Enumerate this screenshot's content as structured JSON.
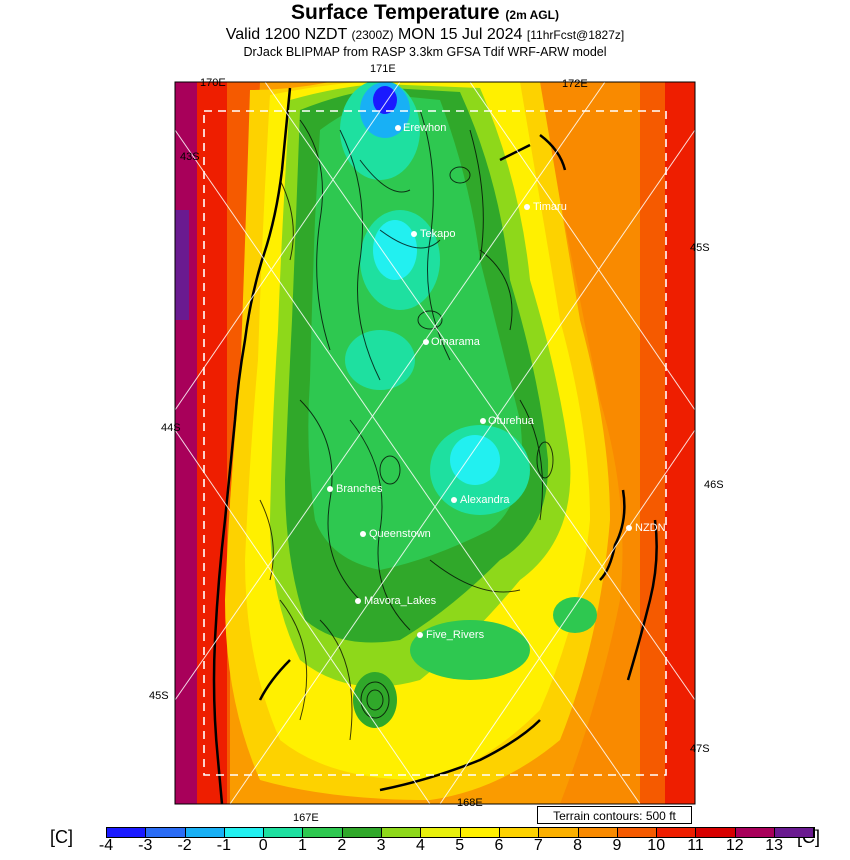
{
  "title": {
    "main": "Surface Temperature",
    "main_suffix": "(2m AGL)",
    "line2_a": "Valid 1200 NZDT",
    "line2_b": "(2300Z)",
    "line2_c": "MON 15 Jul 2024",
    "line2_d": "[11hrFcst@1827z]",
    "line3": "DrJack BLIPMAP from RASP 3.3km GFSA Tdif WRF-ARW model"
  },
  "grid_labels": {
    "lon_170": "170E",
    "lon_171": "171E",
    "lon_172": "172E",
    "lon_167": "167E",
    "lon_168": "168E",
    "lat_43": "43S",
    "lat_44": "44S",
    "lat_45_left": "45S",
    "lat_45_right": "45S",
    "lat_46": "46S",
    "lat_47": "47S"
  },
  "locations": [
    {
      "name": "Erewhon"
    },
    {
      "name": "Timaru"
    },
    {
      "name": "Tekapo"
    },
    {
      "name": "Omarama"
    },
    {
      "name": "Oturehua"
    },
    {
      "name": "Branches"
    },
    {
      "name": "Alexandra"
    },
    {
      "name": "NZDN"
    },
    {
      "name": "Queenstown"
    },
    {
      "name": "Mavora_Lakes"
    },
    {
      "name": "Five_Rivers"
    }
  ],
  "terrain_note": "Terrain contours: 500 ft",
  "colorbar": {
    "unit": "[C]",
    "ticks": [
      "-4",
      "-3",
      "-2",
      "-1",
      "0",
      "1",
      "2",
      "3",
      "4",
      "5",
      "6",
      "7",
      "8",
      "9",
      "10",
      "11",
      "12",
      "13"
    ],
    "colors": [
      "#1a1aff",
      "#2a6cf5",
      "#18b0f5",
      "#22f0f0",
      "#1ee0a0",
      "#2ec850",
      "#30a82a",
      "#8ed81a",
      "#e8f00c",
      "#fff000",
      "#fdd200",
      "#fbb000",
      "#f98a00",
      "#f55a00",
      "#ee1e00",
      "#d70000",
      "#a8005a",
      "#6a1a90"
    ]
  }
}
